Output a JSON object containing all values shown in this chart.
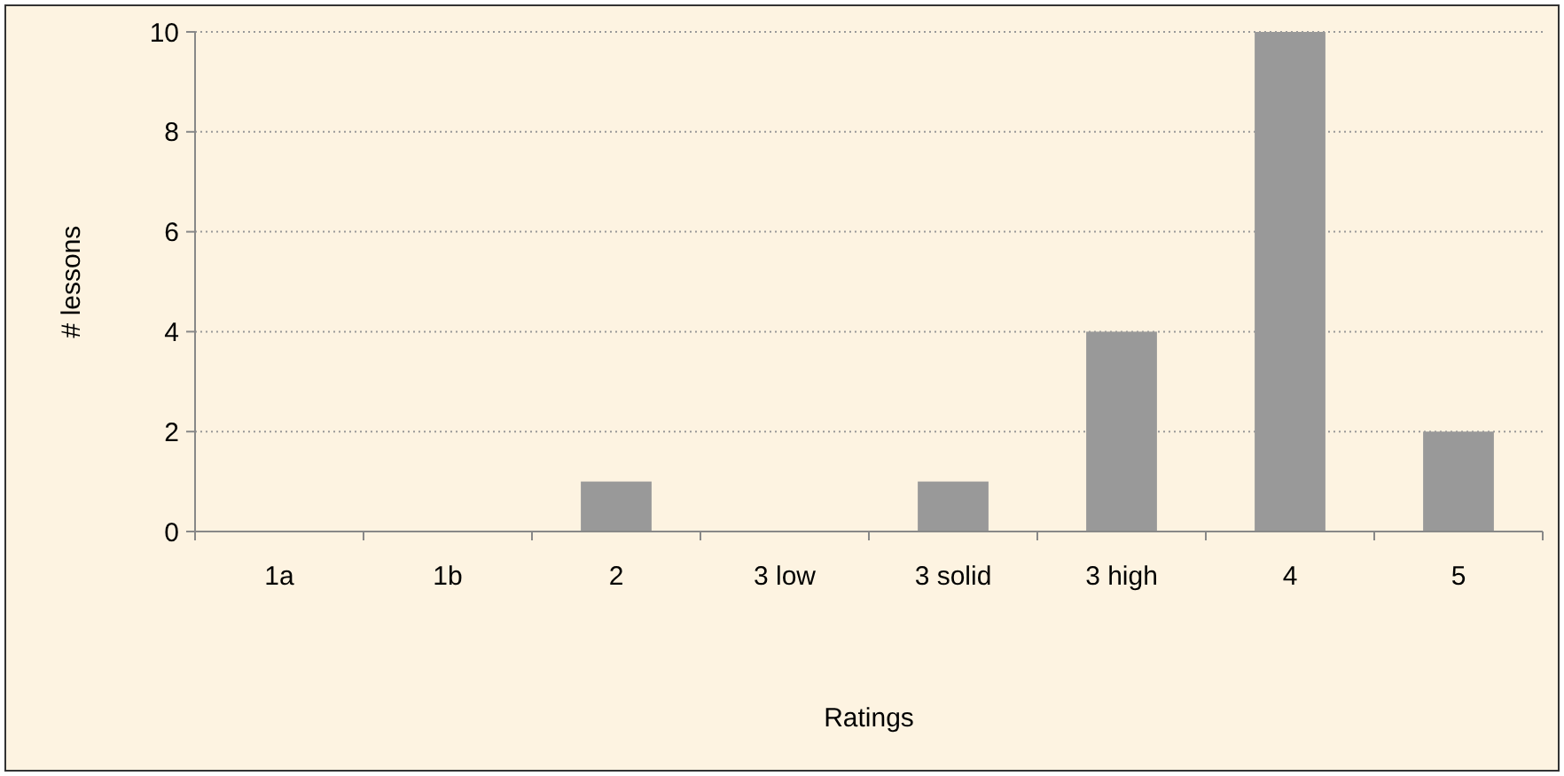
{
  "chart_data": {
    "type": "bar",
    "xlabel": "Ratings",
    "ylabel": "# lessons",
    "categories": [
      "1a",
      "1b",
      "2",
      "3 low",
      "3 solid",
      "3 high",
      "4",
      "5"
    ],
    "values": [
      0,
      0,
      1,
      0,
      1,
      4,
      10,
      2
    ],
    "color": "#999999",
    "ylim": [
      0,
      10
    ],
    "yticks": [
      0,
      2,
      4,
      6,
      8,
      10
    ],
    "grid": "y"
  }
}
